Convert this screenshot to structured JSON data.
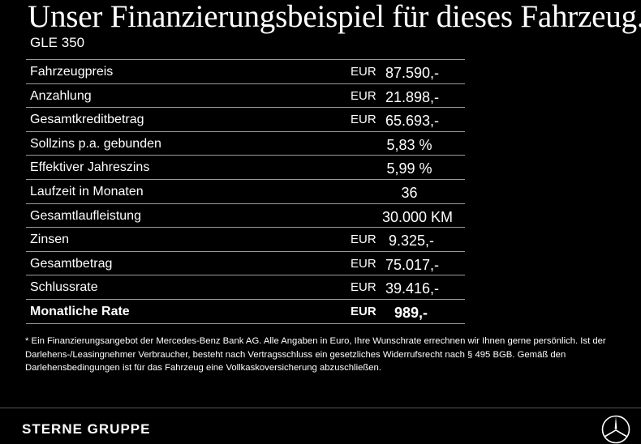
{
  "title": "Unser Finanzierungsbeispiel für dieses Fahrzeug.*",
  "model": "GLE 350",
  "rows": [
    {
      "label": "Fahrzeugpreis",
      "currency": "EUR",
      "value": "87.590,-"
    },
    {
      "label": "Anzahlung",
      "currency": "EUR",
      "value": "21.898,-"
    },
    {
      "label": "Gesamtkreditbetrag",
      "currency": "EUR",
      "value": "65.693,-"
    },
    {
      "label": "Sollzins p.a. gebunden",
      "currency": "",
      "value": "5,83 %"
    },
    {
      "label": "Effektiver Jahreszins",
      "currency": "",
      "value": "5,99 %"
    },
    {
      "label": "Laufzeit in Monaten",
      "currency": "",
      "value": "36"
    },
    {
      "label": "Gesamtlaufleistung",
      "currency": "",
      "value": "30.000 KM"
    },
    {
      "label": "Zinsen",
      "currency": "EUR",
      "value": "9.325,-"
    },
    {
      "label": "Gesamtbetrag",
      "currency": "EUR",
      "value": "75.017,-"
    },
    {
      "label": "Schlussrate",
      "currency": "EUR",
      "value": "39.416,-"
    },
    {
      "label": "Monatliche Rate",
      "currency": "EUR",
      "value": "989,-"
    }
  ],
  "footnote": "* Ein Finanzierungsangebot der Mercedes-Benz Bank AG. Alle Angaben in Euro, Ihre Wunschrate errechnen wir Ihnen gerne persönlich. Ist der Darlehens-/Leasingnehmer Verbraucher, besteht nach Vertragsschluss ein gesetzliches Widerrufsrecht nach § 495 BGB. Gemäß den Darlehensbedingungen ist für das Fahrzeug eine Vollkaskoversicherung abzuschließen.",
  "footer": {
    "brand": "STERNE GRUPPE",
    "logo_icon": "mercedes-star-icon"
  }
}
